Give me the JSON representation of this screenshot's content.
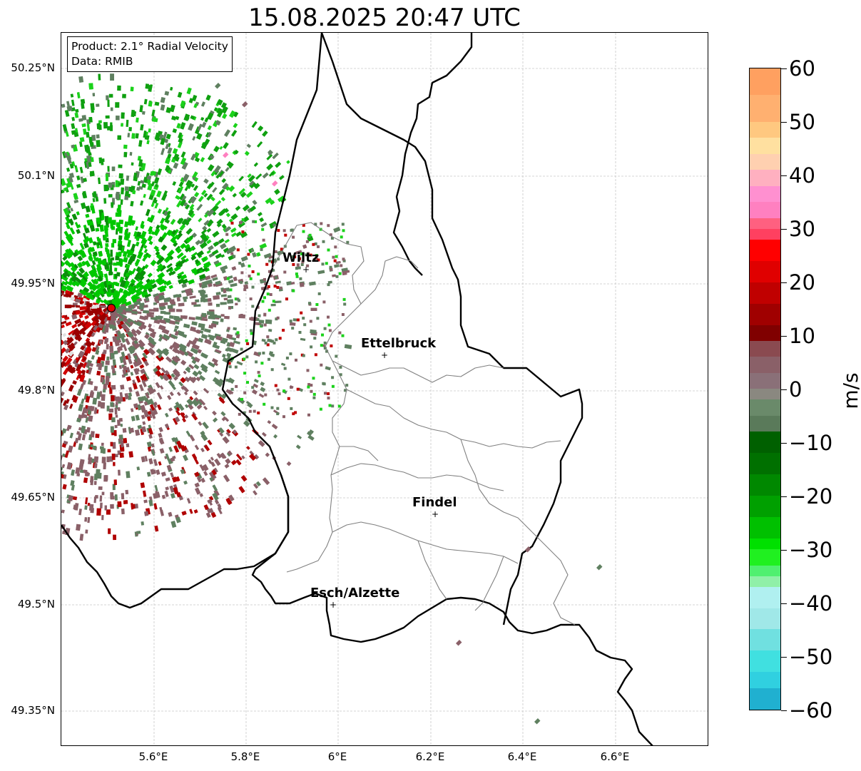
{
  "title": "15.08.2025 20:47 UTC",
  "info": {
    "product": "Product: 2.1° Radial Velocity",
    "data_source": "Data: RMIB"
  },
  "map": {
    "lat_ticks": [
      "50.25°N",
      "50.1°N",
      "49.95°N",
      "49.8°N",
      "49.65°N",
      "49.5°N",
      "49.35°N"
    ],
    "lon_ticks": [
      "5.6°E",
      "5.8°E",
      "6°E",
      "6.2°E",
      "6.4°E",
      "6.6°E"
    ],
    "cities": [
      {
        "name": "Wiltz",
        "marker": "+"
      },
      {
        "name": "Ettelbruck",
        "marker": "+"
      },
      {
        "name": "Findel",
        "marker": "+"
      },
      {
        "name": "Esch/Alzette",
        "marker": "+"
      }
    ],
    "radar_site_color": "#e00000",
    "country_border_color": "#000000",
    "canton_border_color": "#808080",
    "grid_color": "#c8c8c8"
  },
  "colorbar": {
    "unit": "m/s",
    "ticks": [
      "60",
      "50",
      "40",
      "30",
      "20",
      "10",
      "0",
      "−10",
      "−20",
      "−30",
      "−40",
      "−50",
      "−60"
    ],
    "min": -60,
    "max": 60,
    "colors": {
      "approaching_strong": "#1f77b4",
      "approaching_cyan": "#30e0e0",
      "approaching_green": "#00c800",
      "near_zero_green": "#5f8060",
      "near_zero_red": "#8a6068",
      "receding_red": "#d00000",
      "receding_pink": "#ff80c0",
      "receding_orange": "#ffa060"
    }
  }
}
